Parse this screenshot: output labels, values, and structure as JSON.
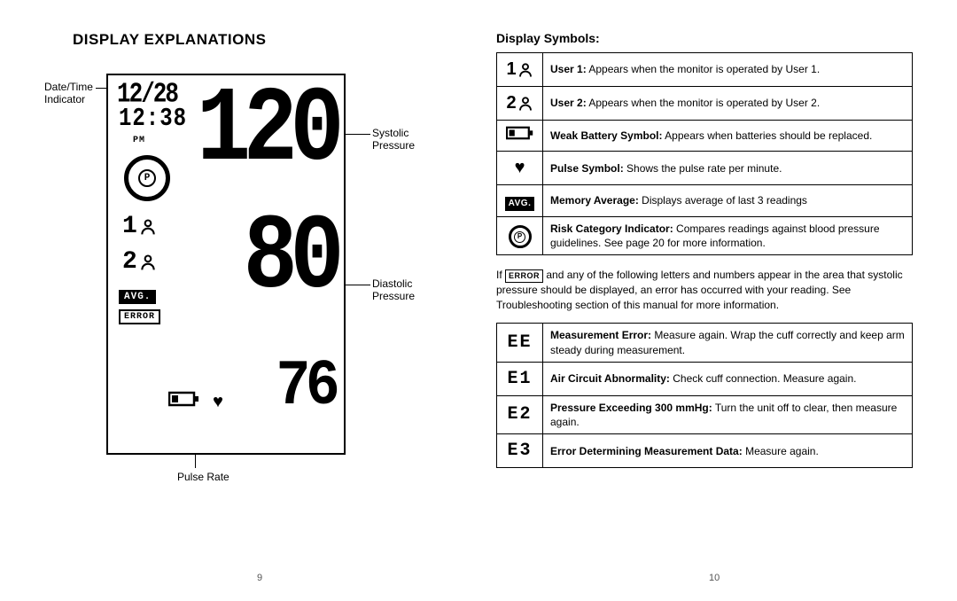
{
  "left": {
    "title": "DISPLAY EXPLANATIONS",
    "labels": {
      "datetime": "Date/Time\nIndicator",
      "systolic": "Systolic\nPressure",
      "diastolic": "Diastolic\nPressure",
      "pulse": "Pulse Rate"
    },
    "lcd": {
      "date": "12/28",
      "time": "12:38",
      "ampm": "PM",
      "risk_letter": "P",
      "user1_num": "1",
      "user2_num": "2",
      "avg": "AVG.",
      "error": "ERROR",
      "systolic": "120",
      "diastolic": "80",
      "pulse": "76"
    },
    "page_number": "9"
  },
  "right": {
    "title": "Display Symbols:",
    "symbols": [
      {
        "icon_type": "user",
        "icon_text": "1",
        "html": "<b>User 1:</b> Appears when the monitor is operated by User 1."
      },
      {
        "icon_type": "user",
        "icon_text": "2",
        "html": "<b>User 2:</b> Appears when the monitor is operated by User 2."
      },
      {
        "icon_type": "battery",
        "html": "<b>Weak Battery Symbol:</b> Appears when batteries should be replaced."
      },
      {
        "icon_type": "heart",
        "html": "<b>Pulse Symbol:</b>  Shows the pulse rate per minute."
      },
      {
        "icon_type": "avg",
        "icon_text": "AVG.",
        "html": "<b>Memory Average:</b> Displays average of last 3 readings"
      },
      {
        "icon_type": "risk",
        "icon_text": "P",
        "html": "<b>Risk Category Indicator:</b> Compares readings against blood pressure guidelines. See page 20 for more information."
      }
    ],
    "error_intro_pre": "If ",
    "error_intro_badge": "ERROR",
    "error_intro_post": " and any of the following letters and numbers appear in the area that systolic pressure should be displayed, an error has occurred with your reading. See Troubleshooting section of this manual for more information.",
    "errors": [
      {
        "code": "EE",
        "html": "<b>Measurement Error:</b> Measure again. Wrap the cuff correctly and keep arm steady during measurement."
      },
      {
        "code": "E1",
        "html": "<b>Air Circuit Abnormality:</b> Check cuff connection. Measure again."
      },
      {
        "code": "E2",
        "html": "<b>Pressure Exceeding 300 mmHg:</b> Turn the unit off to clear, then measure again."
      },
      {
        "code": "E3",
        "html": "<b>Error Determining Measurement Data:</b> Measure again."
      }
    ],
    "page_number": "10"
  },
  "colors": {
    "text": "#000000",
    "bg": "#ffffff"
  }
}
